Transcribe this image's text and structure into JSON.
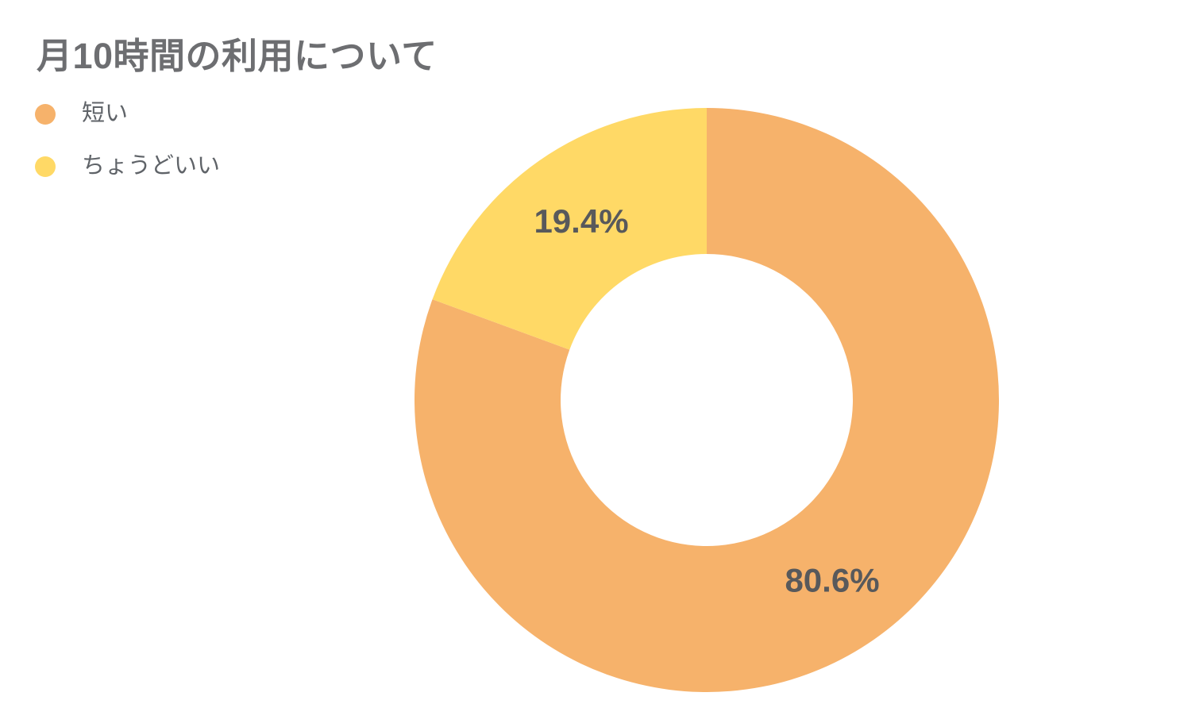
{
  "page": {
    "background": "#ffffff"
  },
  "chart_data": {
    "type": "pie",
    "subtype": "donut",
    "title": "月10時間の利用について",
    "labels": [
      "短い",
      "ちょうどいい"
    ],
    "values": [
      80.6,
      19.4
    ],
    "slice_labels": [
      "80.6%",
      "19.4%"
    ],
    "colors": [
      "#F6B26B",
      "#FFD966"
    ],
    "donut_hole_ratio": 0.5,
    "start_angle": "top",
    "direction": "clockwise",
    "legend_position": "top-left",
    "title_color": "#6d6e71",
    "legend_text_color": "#5f6368",
    "slice_label_color": "#58595b"
  }
}
